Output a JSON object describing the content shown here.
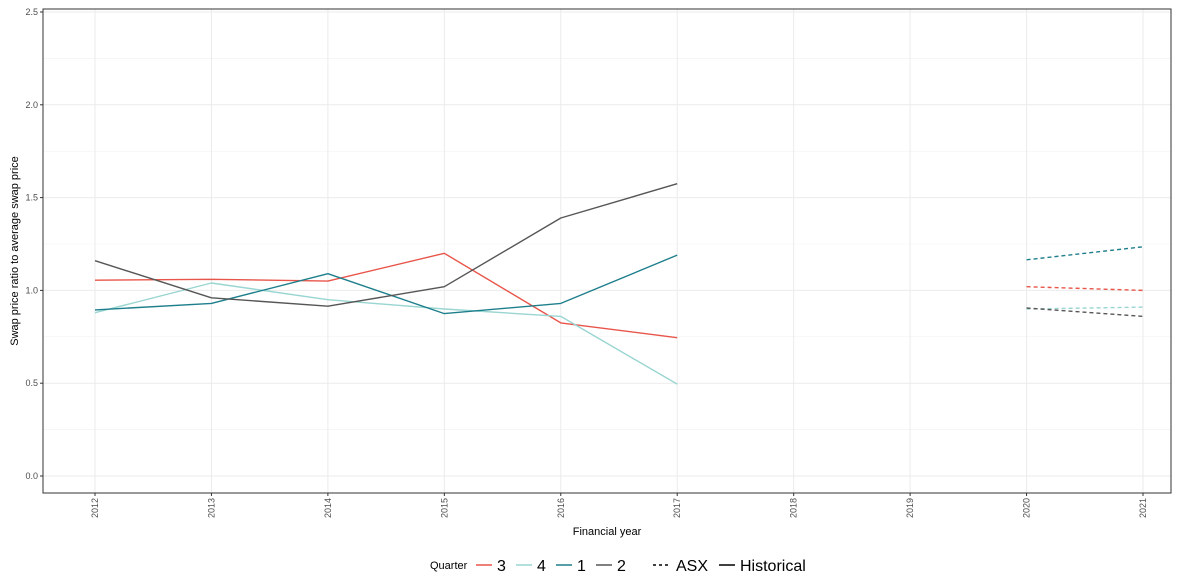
{
  "chart_data": {
    "type": "line",
    "xlabel": "Financial year",
    "ylabel": "Swap price ratio to average swap price",
    "x": [
      2012,
      2013,
      2014,
      2015,
      2016,
      2017,
      2018,
      2019,
      2020,
      2021
    ],
    "x_tick_labels": [
      "2012",
      "2013",
      "2014",
      "2015",
      "2016",
      "2017",
      "2018",
      "2019",
      "2020",
      "2021"
    ],
    "ylim": [
      0,
      2.5
    ],
    "y_ticks": [
      0.0,
      0.5,
      1.0,
      1.5,
      2.0,
      2.5
    ],
    "y_tick_labels": [
      "0.0",
      "0.5",
      "1.0",
      "1.5",
      "2.0",
      "2.5"
    ],
    "grid": true,
    "legend_placement": "bottom",
    "legend": {
      "color_title": "Quarter",
      "color_entries": [
        "3",
        "4",
        "1",
        "2"
      ],
      "linetype_entries": [
        "ASX",
        "Historical"
      ]
    },
    "series": [
      {
        "name": "3",
        "color": "#e8554a",
        "historical": [
          [
            2012,
            1.055
          ],
          [
            2013,
            1.06
          ],
          [
            2014,
            1.05
          ],
          [
            2015,
            1.2
          ],
          [
            2016,
            0.825
          ],
          [
            2017,
            0.745
          ]
        ],
        "asx": [
          [
            2020,
            1.02
          ],
          [
            2021,
            1.0
          ]
        ]
      },
      {
        "name": "4",
        "color": "#99d5d1",
        "historical": [
          [
            2012,
            0.88
          ],
          [
            2013,
            1.04
          ],
          [
            2014,
            0.95
          ],
          [
            2015,
            0.9
          ],
          [
            2016,
            0.86
          ],
          [
            2017,
            0.495
          ]
        ],
        "asx": [
          [
            2020,
            0.9
          ],
          [
            2021,
            0.91
          ]
        ]
      },
      {
        "name": "1",
        "color": "#1e7f8c",
        "historical": [
          [
            2012,
            0.895
          ],
          [
            2013,
            0.93
          ],
          [
            2014,
            1.09
          ],
          [
            2015,
            0.875
          ],
          [
            2016,
            0.93
          ],
          [
            2017,
            1.19
          ]
        ],
        "asx": [
          [
            2020,
            1.165
          ],
          [
            2021,
            1.235
          ]
        ]
      },
      {
        "name": "2",
        "color": "#565656",
        "historical": [
          [
            2012,
            1.16
          ],
          [
            2013,
            0.96
          ],
          [
            2014,
            0.915
          ],
          [
            2015,
            1.02
          ],
          [
            2016,
            1.39
          ],
          [
            2017,
            1.575
          ]
        ],
        "asx": [
          [
            2020,
            0.905
          ],
          [
            2021,
            0.86
          ]
        ]
      }
    ]
  }
}
